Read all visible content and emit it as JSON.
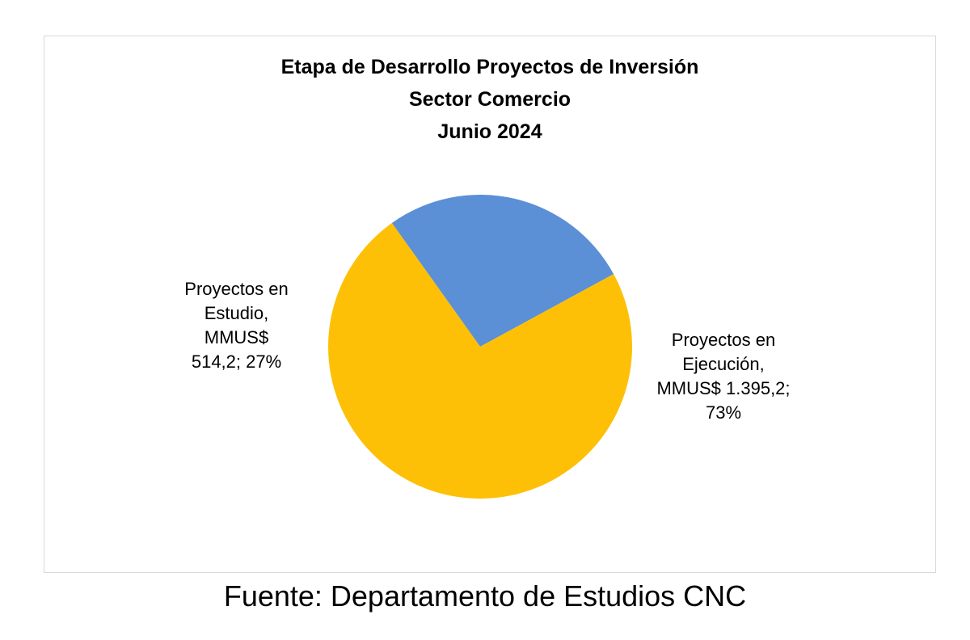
{
  "chart_data": {
    "type": "pie",
    "title_lines": [
      "Etapa de Desarrollo Proyectos de Inversión",
      "Sector Comercio",
      "Junio 2024"
    ],
    "slices": [
      {
        "key": "estudio",
        "category": "Proyectos en Estudio",
        "value": 514.2,
        "percent": 27,
        "color": "#5B8FD6",
        "label_lines": [
          "Proyectos en",
          "Estudio,",
          "MMUS$",
          "514,2; 27%"
        ]
      },
      {
        "key": "ejecucion",
        "category": "Proyectos en Ejecución",
        "value": 1395.2,
        "percent": 73,
        "color": "#FDC006",
        "label_lines": [
          "Proyectos en",
          "Ejecución,",
          "MMUS$ 1.395,2;",
          "73%"
        ]
      }
    ],
    "legend": "none"
  },
  "source": "Fuente: Departamento de Estudios CNC"
}
